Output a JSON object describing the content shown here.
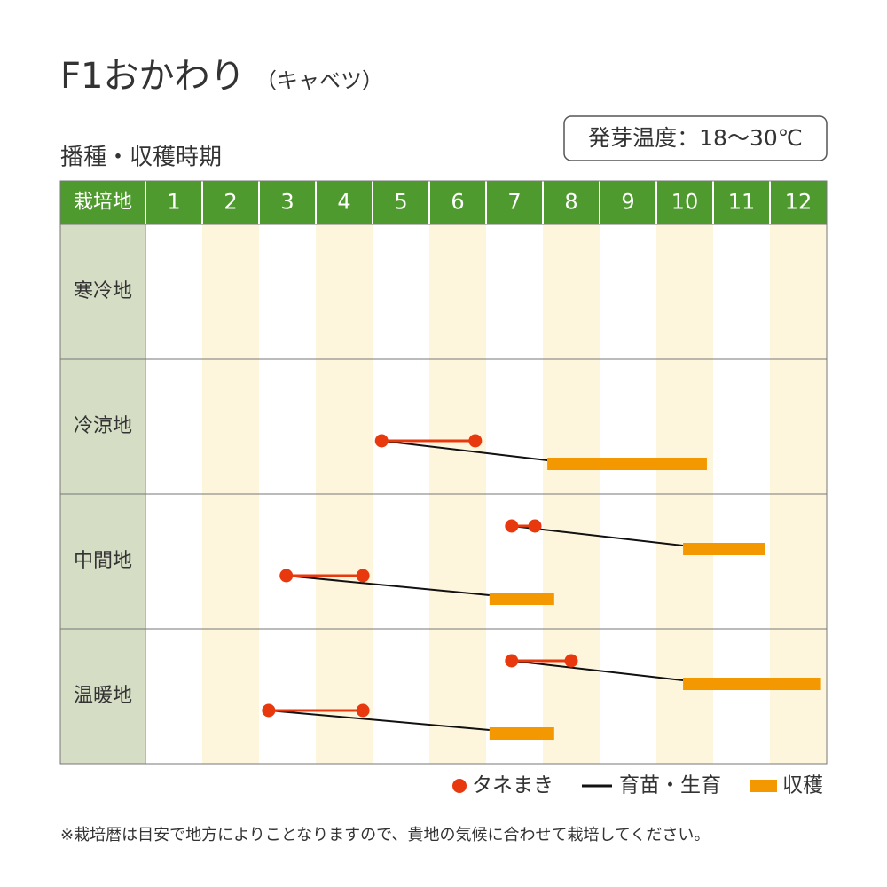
{
  "chart_data": {
    "type": "gantt",
    "title": "F1おかわり",
    "subtitle": "（キャベツ）",
    "temperature_note": "発芽温度：18～30℃",
    "section_title": "播種・収穫時期",
    "row_header": "栽培地",
    "categories": [
      "1",
      "2",
      "3",
      "4",
      "5",
      "6",
      "7",
      "8",
      "9",
      "10",
      "11",
      "12"
    ],
    "xlim": [
      1,
      13
    ],
    "rows": [
      {
        "name": "寒冷地",
        "plans": []
      },
      {
        "name": "冷涼地",
        "plans": [
          {
            "sow": [
              5.16,
              6.81
            ],
            "harvest": [
              8.08,
              10.89
            ]
          }
        ]
      },
      {
        "name": "中間地",
        "plans": [
          {
            "sow": [
              7.45,
              7.86
            ],
            "harvest": [
              10.47,
              11.92
            ]
          },
          {
            "sow": [
              3.48,
              4.83
            ],
            "harvest": [
              7.06,
              8.2
            ]
          }
        ]
      },
      {
        "name": "温暖地",
        "plans": [
          {
            "sow": [
              7.45,
              8.5
            ],
            "harvest": [
              10.47,
              12.9
            ]
          },
          {
            "sow": [
              3.17,
              4.83
            ],
            "harvest": [
              7.06,
              8.2
            ]
          }
        ]
      }
    ],
    "series": [
      {
        "name": "タネまき",
        "color": "#e8380d"
      },
      {
        "name": "育苗・生育",
        "color": "#111111"
      },
      {
        "name": "収穫",
        "color": "#f39800"
      }
    ],
    "footnote": "※栽培暦は目安で地方によりことなりますので、貴地の気候に合わせて栽培してください。"
  }
}
